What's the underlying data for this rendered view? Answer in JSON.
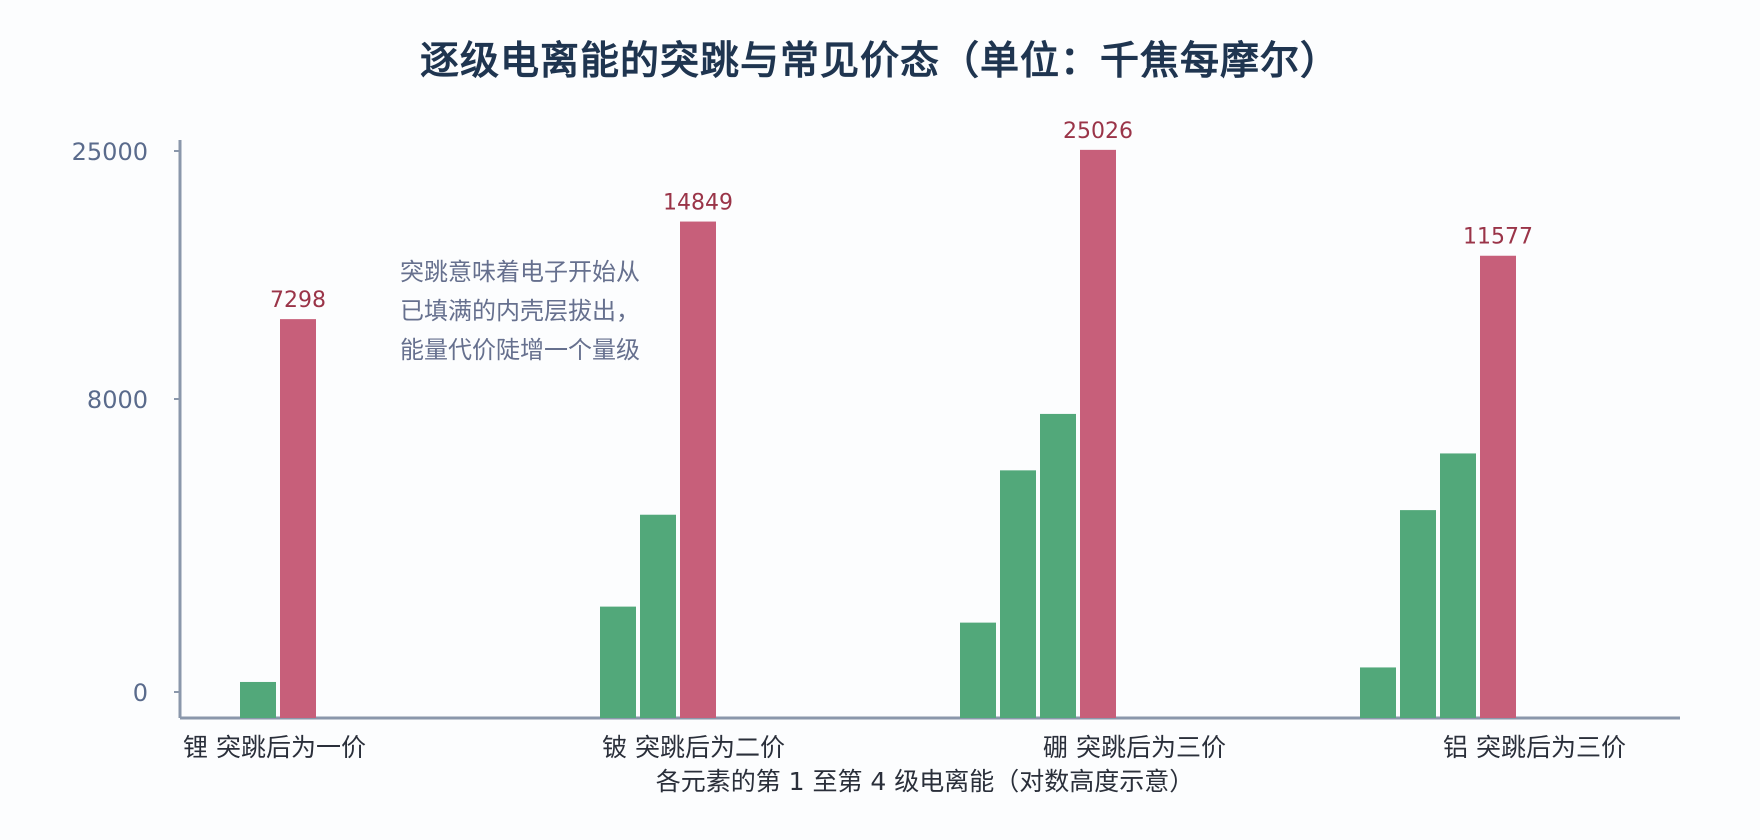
{
  "chart_data": {
    "type": "bar",
    "title": "逐级电离能的突跳与常见价态（单位：千焦每摩尔）",
    "xlabel": "各元素的第 1 至第 4 级电离能（对数高度示意）",
    "ylabel": "",
    "y_scale": "log",
    "y_ticks": [
      0,
      8000,
      25000
    ],
    "categories": [
      "锂 突跳后为一价",
      "铍 突跳后为二价",
      "硼 突跳后为三价",
      "铝 突跳后为三价"
    ],
    "groups": [
      {
        "values": [
          520,
          7298
        ],
        "jump_index": 1,
        "jump_label": "7298"
      },
      {
        "values": [
          900,
          1757,
          14849
        ],
        "jump_index": 2,
        "jump_label": "14849"
      },
      {
        "values": [
          801,
          2427,
          3660,
          25026
        ],
        "jump_index": 3,
        "jump_label": "25026"
      },
      {
        "values": [
          578,
          1817,
          2745,
          11577
        ],
        "jump_index": 3,
        "jump_label": "11577"
      }
    ],
    "annotation": [
      "突跳意味着电子开始从",
      "已填满的内壳层拔出，",
      "能量代价陡增一个量级"
    ],
    "colors": {
      "normal": "#52a87a",
      "jump": "#c75f7a",
      "axis": "#8a97ab",
      "label": "#9a3448",
      "tick": "#5a6b8c"
    },
    "grid": false,
    "legend": "none"
  }
}
